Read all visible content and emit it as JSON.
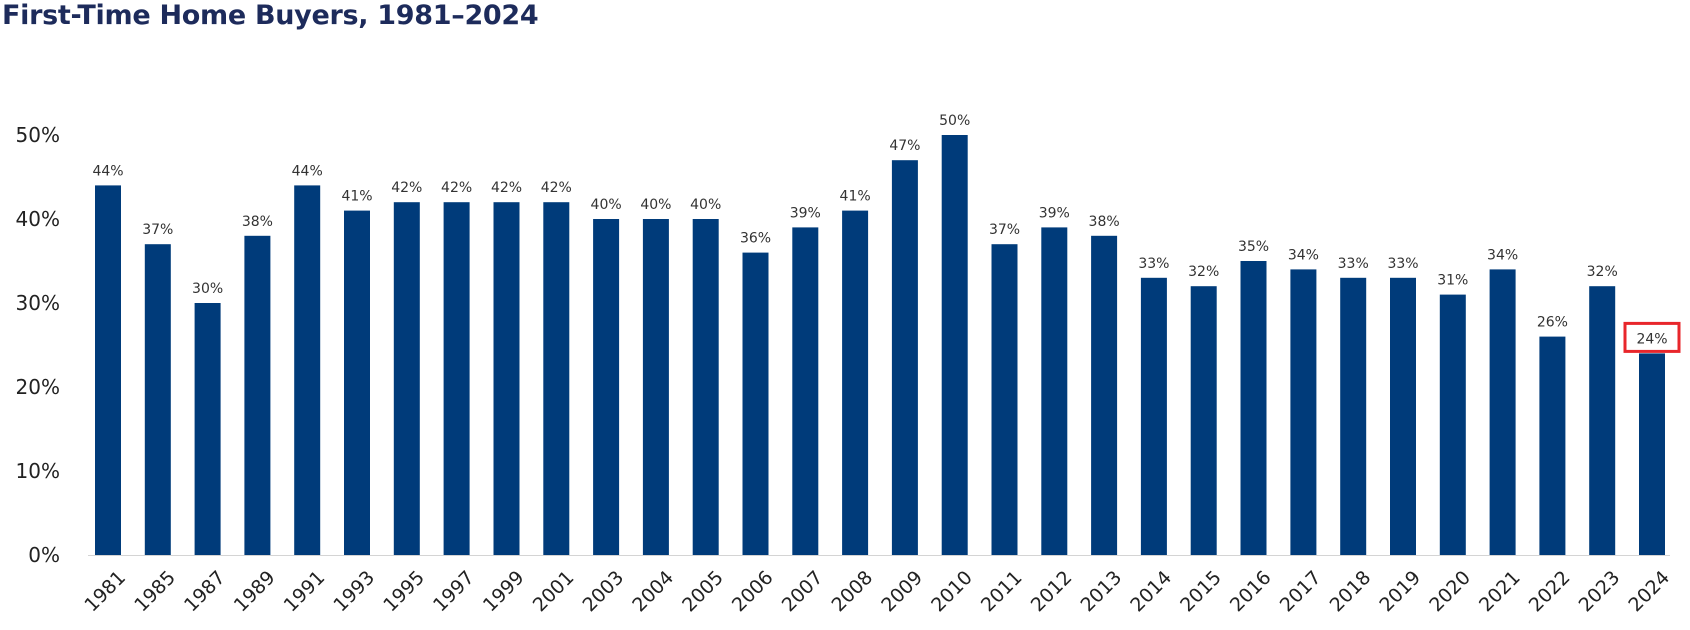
{
  "chart_data": {
    "type": "bar",
    "title": "First-Time Home Buyers, 1981–2024",
    "categories": [
      "1981",
      "1985",
      "1987",
      "1989",
      "1991",
      "1993",
      "1995",
      "1997",
      "1999",
      "2001",
      "2003",
      "2004",
      "2005",
      "2006",
      "2007",
      "2008",
      "2009",
      "2010",
      "2011",
      "2012",
      "2013",
      "2014",
      "2015",
      "2016",
      "2017",
      "2018",
      "2019",
      "2020",
      "2021",
      "2022",
      "2023",
      "2024"
    ],
    "values": [
      44,
      37,
      30,
      38,
      44,
      41,
      42,
      42,
      42,
      42,
      40,
      40,
      40,
      36,
      39,
      41,
      47,
      50,
      37,
      39,
      38,
      33,
      32,
      35,
      34,
      33,
      33,
      31,
      34,
      26,
      32,
      24
    ],
    "value_labels": [
      "44%",
      "37%",
      "30%",
      "38%",
      "44%",
      "41%",
      "42%",
      "42%",
      "42%",
      "42%",
      "40%",
      "40%",
      "40%",
      "36%",
      "39%",
      "41%",
      "47%",
      "50%",
      "37%",
      "39%",
      "38%",
      "33%",
      "32%",
      "35%",
      "34%",
      "33%",
      "33%",
      "31%",
      "34%",
      "26%",
      "32%",
      "24%"
    ],
    "yticks": [
      0,
      10,
      20,
      30,
      40,
      50
    ],
    "ytick_labels": [
      "0%",
      "10%",
      "20%",
      "30%",
      "40%",
      "50%"
    ],
    "ylim": [
      0,
      50
    ],
    "xlabel": "",
    "ylabel": "",
    "grid": false,
    "bar_color": "#003b7a",
    "highlight": {
      "category": "2024",
      "color": "#e8262b"
    }
  }
}
